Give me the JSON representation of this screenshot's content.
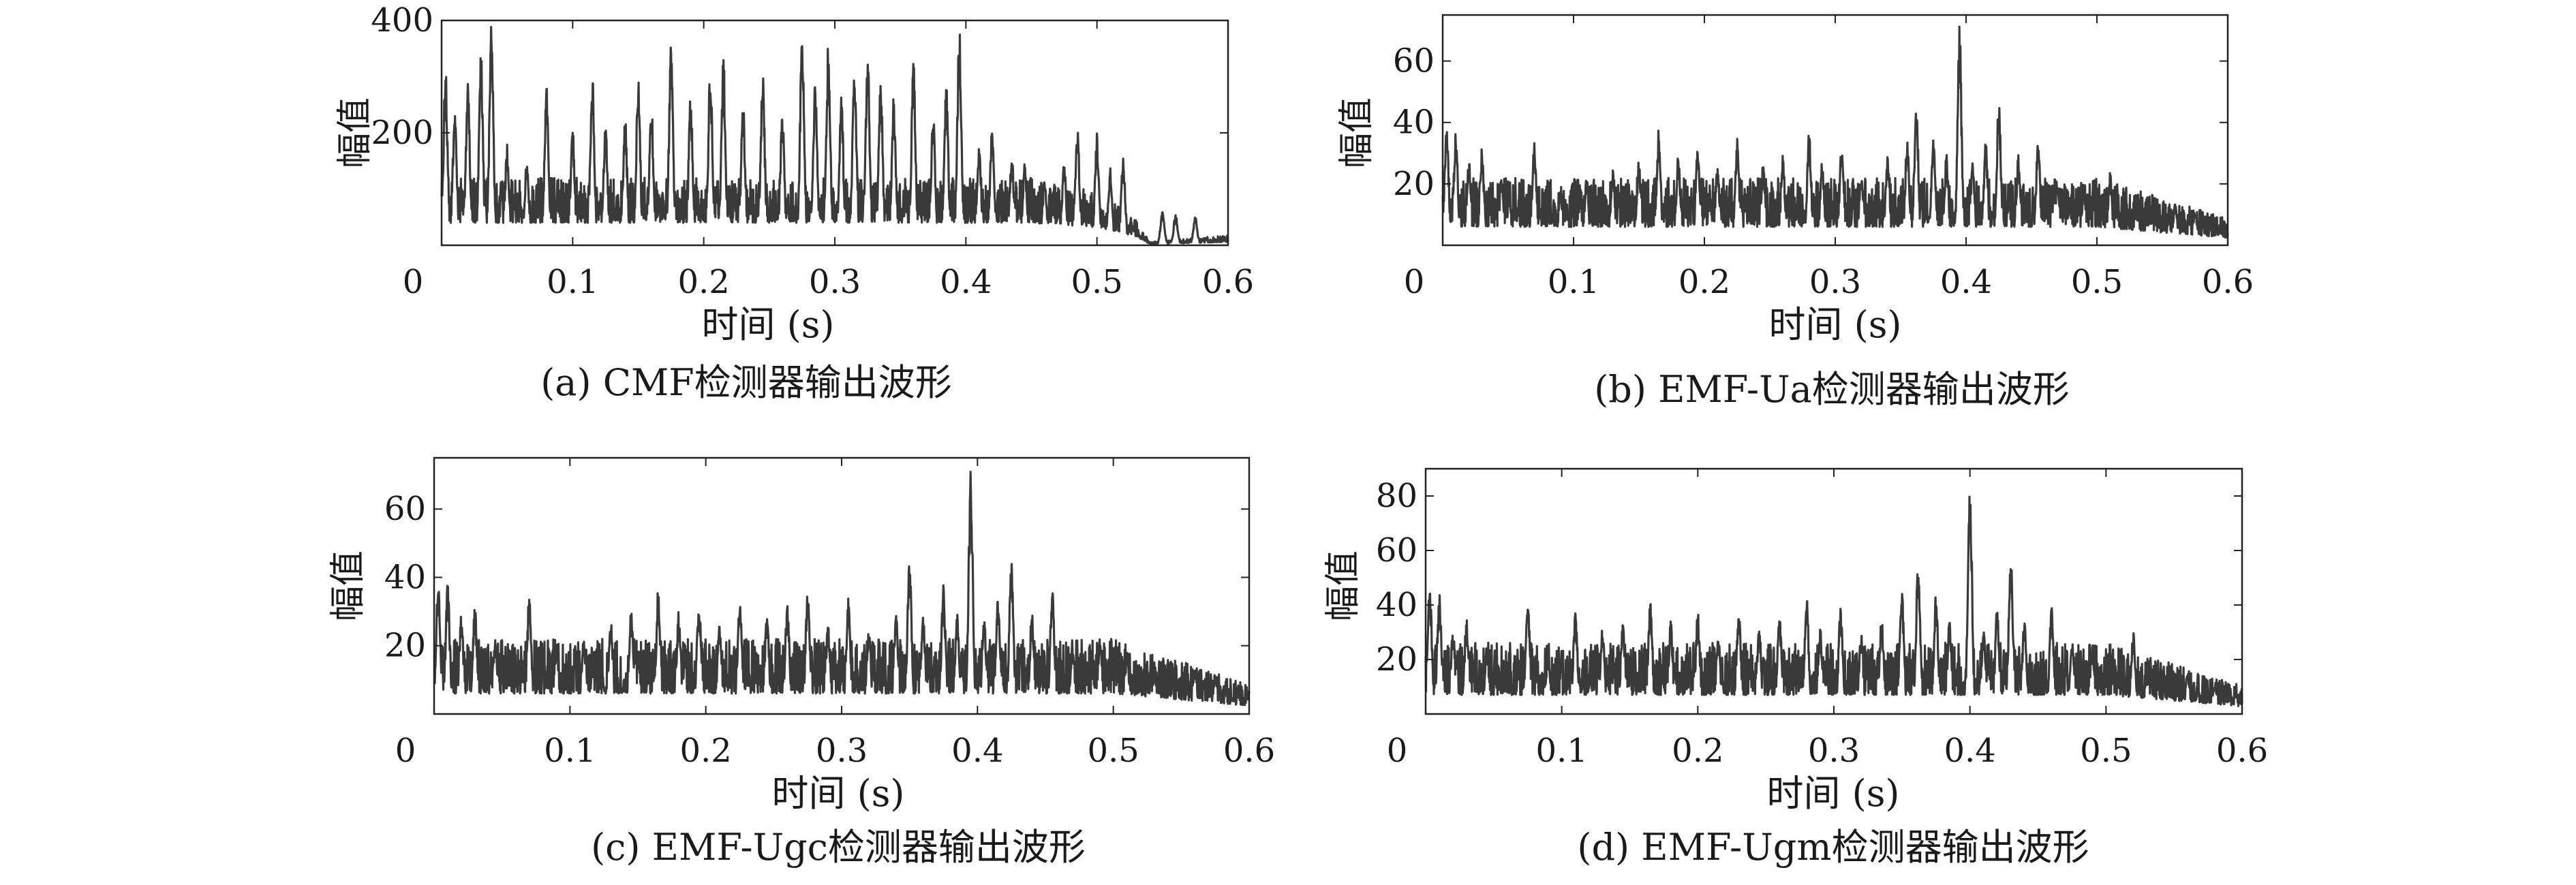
{
  "chart_data": [
    {
      "type": "line",
      "caption": "(a) CMF检测器输出波形",
      "xlabel": "时间 (s)",
      "ylabel": "幅值",
      "xlim": [
        0,
        0.6
      ],
      "ylim": [
        0,
        400
      ],
      "xticks": [
        "0",
        "0.1",
        "0.2",
        "0.3",
        "0.4",
        "0.5",
        "0.6"
      ],
      "yticks": [
        {
          "v": 200,
          "label": "200"
        },
        {
          "v": 400,
          "label": "400"
        }
      ],
      "grid": false,
      "color": "#3a3a3a",
      "base": 40,
      "noise": 50,
      "envelope": [
        [
          0,
          1.0
        ],
        [
          0.45,
          1.0
        ],
        [
          0.5,
          0.8
        ],
        [
          0.53,
          0.4
        ],
        [
          0.54,
          0.05
        ],
        [
          0.6,
          0.15
        ]
      ],
      "peaks": [
        [
          0.003,
          320
        ],
        [
          0.01,
          250
        ],
        [
          0.02,
          290
        ],
        [
          0.03,
          350
        ],
        [
          0.038,
          400
        ],
        [
          0.05,
          180
        ],
        [
          0.065,
          160
        ],
        [
          0.08,
          285
        ],
        [
          0.1,
          210
        ],
        [
          0.115,
          310
        ],
        [
          0.125,
          220
        ],
        [
          0.14,
          230
        ],
        [
          0.15,
          300
        ],
        [
          0.16,
          260
        ],
        [
          0.175,
          370
        ],
        [
          0.19,
          270
        ],
        [
          0.205,
          330
        ],
        [
          0.215,
          345
        ],
        [
          0.23,
          260
        ],
        [
          0.245,
          315
        ],
        [
          0.26,
          240
        ],
        [
          0.275,
          390
        ],
        [
          0.285,
          300
        ],
        [
          0.295,
          360
        ],
        [
          0.305,
          270
        ],
        [
          0.315,
          340
        ],
        [
          0.325,
          350
        ],
        [
          0.335,
          300
        ],
        [
          0.345,
          270
        ],
        [
          0.36,
          330
        ],
        [
          0.375,
          240
        ],
        [
          0.385,
          290
        ],
        [
          0.395,
          400
        ],
        [
          0.41,
          180
        ],
        [
          0.42,
          220
        ],
        [
          0.435,
          170
        ],
        [
          0.445,
          150
        ],
        [
          0.46,
          120
        ],
        [
          0.475,
          150
        ],
        [
          0.485,
          220
        ],
        [
          0.5,
          200
        ],
        [
          0.51,
          140
        ],
        [
          0.52,
          160
        ],
        [
          0.55,
          60
        ],
        [
          0.56,
          55
        ],
        [
          0.575,
          50
        ]
      ]
    },
    {
      "type": "line",
      "caption": "(b) EMF-Ua检测器输出波形",
      "xlabel": "时间 (s)",
      "ylabel": "幅值",
      "xlim": [
        0,
        0.6
      ],
      "ylim": [
        0,
        75
      ],
      "xticks": [
        "0",
        "0.1",
        "0.2",
        "0.3",
        "0.4",
        "0.5",
        "0.6"
      ],
      "yticks": [
        {
          "v": 20,
          "label": "20"
        },
        {
          "v": 40,
          "label": "40"
        },
        {
          "v": 60,
          "label": "60"
        }
      ],
      "grid": false,
      "color": "#3a3a3a",
      "base": 6,
      "noise": 10,
      "envelope": [
        [
          0,
          1.0
        ],
        [
          0.5,
          1.0
        ],
        [
          0.55,
          0.7
        ],
        [
          0.6,
          0.4
        ]
      ],
      "peaks": [
        [
          0.003,
          40
        ],
        [
          0.01,
          38
        ],
        [
          0.02,
          28
        ],
        [
          0.03,
          32
        ],
        [
          0.045,
          22
        ],
        [
          0.07,
          35
        ],
        [
          0.09,
          18
        ],
        [
          0.11,
          22
        ],
        [
          0.13,
          25
        ],
        [
          0.15,
          28
        ],
        [
          0.165,
          38
        ],
        [
          0.18,
          30
        ],
        [
          0.195,
          33
        ],
        [
          0.21,
          26
        ],
        [
          0.225,
          35
        ],
        [
          0.245,
          28
        ],
        [
          0.26,
          30
        ],
        [
          0.28,
          37
        ],
        [
          0.29,
          28
        ],
        [
          0.305,
          34
        ],
        [
          0.32,
          25
        ],
        [
          0.34,
          31
        ],
        [
          0.355,
          36
        ],
        [
          0.362,
          48
        ],
        [
          0.375,
          38
        ],
        [
          0.385,
          30
        ],
        [
          0.395,
          72
        ],
        [
          0.405,
          28
        ],
        [
          0.415,
          35
        ],
        [
          0.425,
          48
        ],
        [
          0.44,
          30
        ],
        [
          0.455,
          36
        ],
        [
          0.47,
          20
        ],
        [
          0.49,
          18
        ],
        [
          0.51,
          24
        ],
        [
          0.53,
          12
        ],
        [
          0.56,
          14
        ],
        [
          0.575,
          12
        ]
      ]
    },
    {
      "type": "line",
      "caption": "(c) EMF-Ugc检测器输出波形",
      "xlabel": "时间 (s)",
      "ylabel": "幅值",
      "xlim": [
        0,
        0.6
      ],
      "ylim": [
        0,
        75
      ],
      "xticks": [
        "0",
        "0.1",
        "0.2",
        "0.3",
        "0.4",
        "0.5",
        "0.6"
      ],
      "yticks": [
        {
          "v": 20,
          "label": "20"
        },
        {
          "v": 40,
          "label": "40"
        },
        {
          "v": 60,
          "label": "60"
        }
      ],
      "grid": false,
      "color": "#3a3a3a",
      "base": 6,
      "noise": 10,
      "envelope": [
        [
          0,
          1.0
        ],
        [
          0.5,
          1.0
        ],
        [
          0.55,
          0.7
        ],
        [
          0.6,
          0.4
        ]
      ],
      "peaks": [
        [
          0.003,
          40
        ],
        [
          0.01,
          38
        ],
        [
          0.02,
          30
        ],
        [
          0.03,
          32
        ],
        [
          0.045,
          22
        ],
        [
          0.07,
          35
        ],
        [
          0.09,
          20
        ],
        [
          0.11,
          22
        ],
        [
          0.13,
          28
        ],
        [
          0.145,
          32
        ],
        [
          0.165,
          37
        ],
        [
          0.18,
          30
        ],
        [
          0.195,
          35
        ],
        [
          0.21,
          26
        ],
        [
          0.225,
          35
        ],
        [
          0.245,
          30
        ],
        [
          0.26,
          33
        ],
        [
          0.275,
          37
        ],
        [
          0.29,
          28
        ],
        [
          0.305,
          34
        ],
        [
          0.32,
          25
        ],
        [
          0.34,
          31
        ],
        [
          0.35,
          48
        ],
        [
          0.36,
          30
        ],
        [
          0.375,
          38
        ],
        [
          0.385,
          30
        ],
        [
          0.395,
          72
        ],
        [
          0.405,
          28
        ],
        [
          0.415,
          35
        ],
        [
          0.425,
          47
        ],
        [
          0.44,
          30
        ],
        [
          0.455,
          38
        ],
        [
          0.47,
          20
        ],
        [
          0.49,
          22
        ],
        [
          0.51,
          18
        ],
        [
          0.53,
          12
        ],
        [
          0.56,
          14
        ],
        [
          0.575,
          12
        ]
      ]
    },
    {
      "type": "line",
      "caption": "(d) EMF-Ugm检测器输出波形",
      "xlabel": "时间 (s)",
      "ylabel": "幅值",
      "xlim": [
        0,
        0.6
      ],
      "ylim": [
        0,
        90
      ],
      "xticks": [
        "0",
        "0.1",
        "0.2",
        "0.3",
        "0.4",
        "0.5",
        "0.6"
      ],
      "yticks": [
        {
          "v": 20,
          "label": "20"
        },
        {
          "v": 40,
          "label": "40"
        },
        {
          "v": 60,
          "label": "60"
        },
        {
          "v": 80,
          "label": "80"
        }
      ],
      "grid": false,
      "color": "#3a3a3a",
      "base": 7,
      "noise": 12,
      "envelope": [
        [
          0,
          1.0
        ],
        [
          0.5,
          1.0
        ],
        [
          0.55,
          0.7
        ],
        [
          0.6,
          0.4
        ]
      ],
      "peaks": [
        [
          0.003,
          48
        ],
        [
          0.01,
          45
        ],
        [
          0.02,
          33
        ],
        [
          0.03,
          35
        ],
        [
          0.045,
          25
        ],
        [
          0.075,
          43
        ],
        [
          0.09,
          22
        ],
        [
          0.11,
          38
        ],
        [
          0.13,
          32
        ],
        [
          0.145,
          35
        ],
        [
          0.165,
          42
        ],
        [
          0.18,
          35
        ],
        [
          0.2,
          38
        ],
        [
          0.215,
          30
        ],
        [
          0.23,
          40
        ],
        [
          0.245,
          32
        ],
        [
          0.26,
          38
        ],
        [
          0.28,
          43
        ],
        [
          0.29,
          32
        ],
        [
          0.305,
          40
        ],
        [
          0.32,
          30
        ],
        [
          0.335,
          36
        ],
        [
          0.35,
          45
        ],
        [
          0.362,
          58
        ],
        [
          0.375,
          44
        ],
        [
          0.385,
          35
        ],
        [
          0.4,
          85
        ],
        [
          0.41,
          33
        ],
        [
          0.42,
          40
        ],
        [
          0.43,
          60
        ],
        [
          0.44,
          36
        ],
        [
          0.46,
          42
        ],
        [
          0.475,
          28
        ],
        [
          0.49,
          26
        ],
        [
          0.52,
          30
        ],
        [
          0.53,
          14
        ],
        [
          0.56,
          16
        ],
        [
          0.58,
          12
        ]
      ]
    }
  ]
}
